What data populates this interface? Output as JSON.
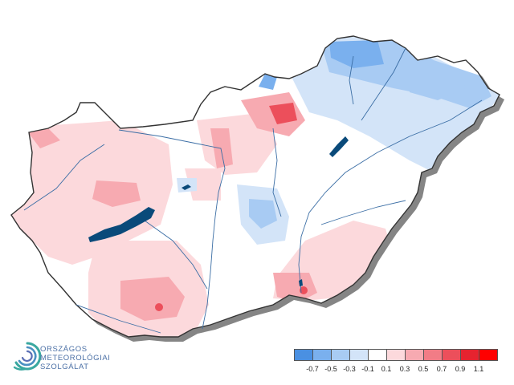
{
  "logo": {
    "lines": [
      "ORSZÁGOS",
      "METEOROLÓGIAI",
      "SZOLGÁLAT"
    ],
    "icon": "omsz-spiral-logo"
  },
  "legend": {
    "colors": [
      "#4a90e2",
      "#7ab0ee",
      "#a8cbf3",
      "#d3e4f8",
      "#ffffff",
      "#fcd9dc",
      "#f7aab1",
      "#f27c86",
      "#ec4f5b",
      "#e6232f",
      "#ff0000"
    ],
    "ticks": [
      "-0.7",
      "-0.5",
      "-0.3",
      "-0.1",
      "0.1",
      "0.3",
      "0.5",
      "0.7",
      "0.9",
      "1.1"
    ]
  },
  "map": {
    "country": "Hungary",
    "lake_color": "#0a4a7a",
    "shadow_color": "#555555",
    "river_color": "#3b6ea5"
  }
}
